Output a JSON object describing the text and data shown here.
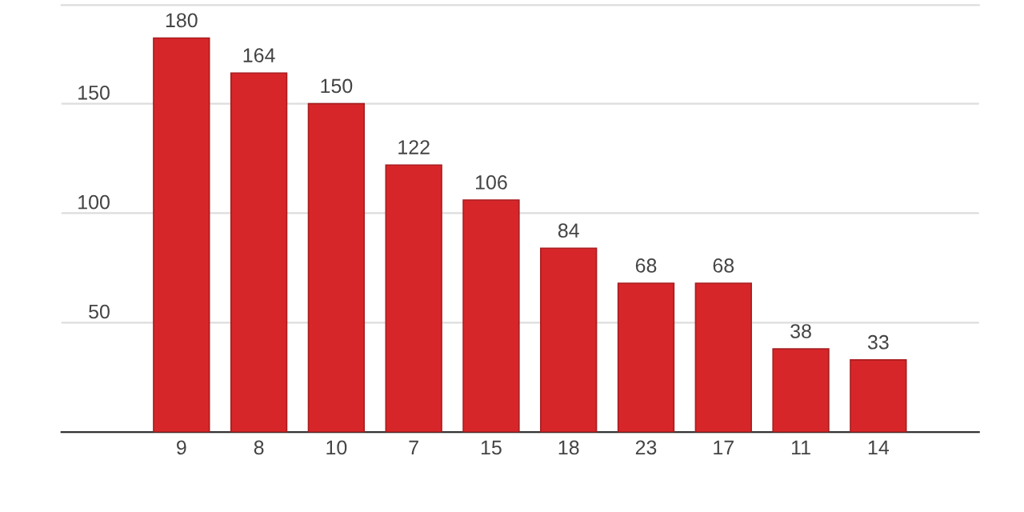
{
  "chart_data": {
    "type": "bar",
    "categories": [
      "9",
      "8",
      "10",
      "7",
      "15",
      "18",
      "23",
      "17",
      "11",
      "14"
    ],
    "values": [
      180,
      164,
      150,
      122,
      106,
      84,
      68,
      68,
      38,
      33
    ],
    "color": "#d72629",
    "ylim": [
      0,
      195
    ],
    "yticks": [
      {
        "value": 0,
        "label": null
      },
      50,
      100,
      150
    ],
    "grid": "y",
    "data_labels": true
  }
}
